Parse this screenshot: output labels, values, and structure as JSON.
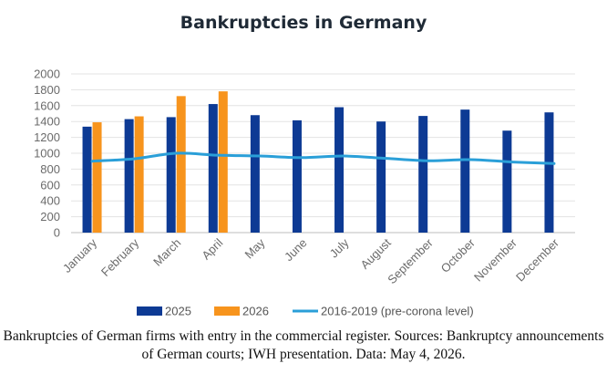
{
  "chart_data": {
    "type": "bar",
    "title": "Bankruptcies in Germany",
    "categories": [
      "January",
      "February",
      "March",
      "April",
      "May",
      "June",
      "July",
      "August",
      "September",
      "October",
      "November",
      "December"
    ],
    "series": [
      {
        "name": "2025",
        "type": "bar",
        "color": "#0d3a94",
        "values": [
          1335,
          1430,
          1455,
          1620,
          1480,
          1415,
          1580,
          1400,
          1470,
          1550,
          1285,
          1515
        ]
      },
      {
        "name": "2026",
        "type": "bar",
        "color": "#f7941d",
        "values": [
          1390,
          1465,
          1720,
          1780,
          null,
          null,
          null,
          null,
          null,
          null,
          null,
          null
        ]
      },
      {
        "name": "2016-2019 (pre-corona level)",
        "type": "line",
        "color": "#2a9fd8",
        "values": [
          900,
          930,
          1000,
          975,
          965,
          945,
          965,
          935,
          905,
          920,
          890,
          870
        ]
      }
    ],
    "ylim": [
      0,
      2000
    ],
    "yticks": [
      0,
      200,
      400,
      600,
      800,
      1000,
      1200,
      1400,
      1600,
      1800,
      2000
    ],
    "grid": true,
    "legend_position": "bottom"
  },
  "caption": "Bankruptcies of German firms with entry in the commercial register. Sources: Bankruptcy announcements of German courts; IWH presentation. Data: May 4, 2026."
}
